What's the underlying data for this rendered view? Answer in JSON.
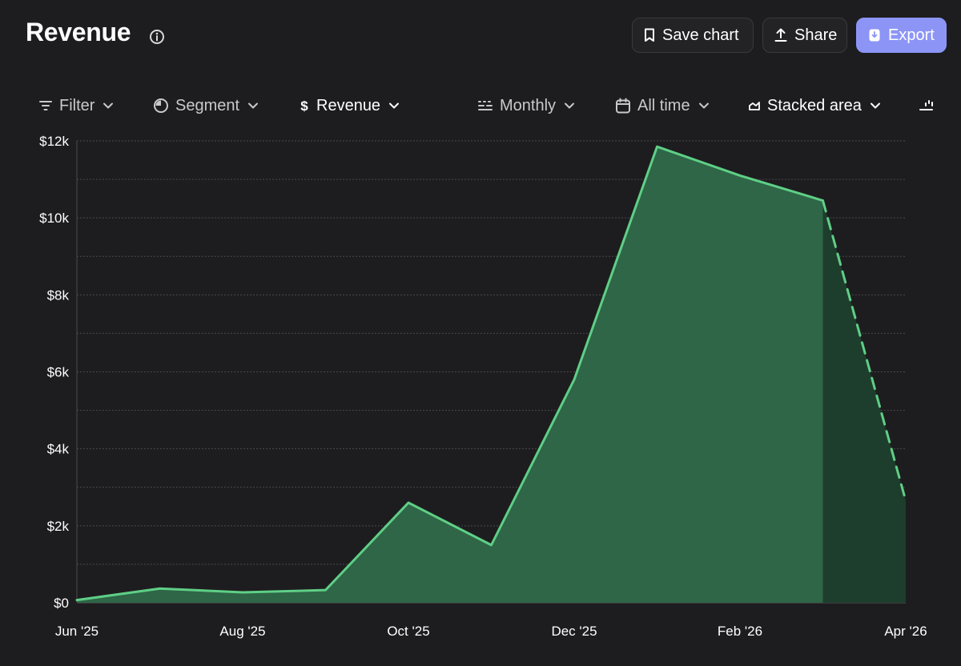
{
  "header": {
    "title": "Revenue",
    "save_label": "Save chart",
    "share_label": "Share",
    "export_label": "Export",
    "accent_color": "#8c95f6"
  },
  "toolbar": {
    "filter_label": "Filter",
    "segment_label": "Segment",
    "metric_label": "Revenue",
    "interval_label": "Monthly",
    "range_label": "All time",
    "chart_type_label": "Stacked area"
  },
  "chart_data": {
    "type": "area",
    "categories": [
      "Jun '25",
      "Jul '25",
      "Aug '25",
      "Sep '25",
      "Oct '25",
      "Nov '25",
      "Dec '25",
      "Jan '26",
      "Feb '26",
      "Mar '26",
      "Apr '26"
    ],
    "x_tick_labels": [
      "Jun '25",
      "Aug '25",
      "Oct '25",
      "Dec '25",
      "Feb '26",
      "Apr '26"
    ],
    "y_tick_labels": [
      "$0",
      "$2k",
      "$4k",
      "$6k",
      "$8k",
      "$10k",
      "$12k"
    ],
    "series": [
      {
        "values": [
          70,
          370,
          270,
          330,
          2600,
          1500,
          5800,
          11850,
          11100,
          10450,
          2650
        ],
        "projected_from_index": 9,
        "color": "#5fcf86"
      }
    ],
    "ylim": [
      0,
      12000
    ],
    "grid": true,
    "legend": "none"
  }
}
